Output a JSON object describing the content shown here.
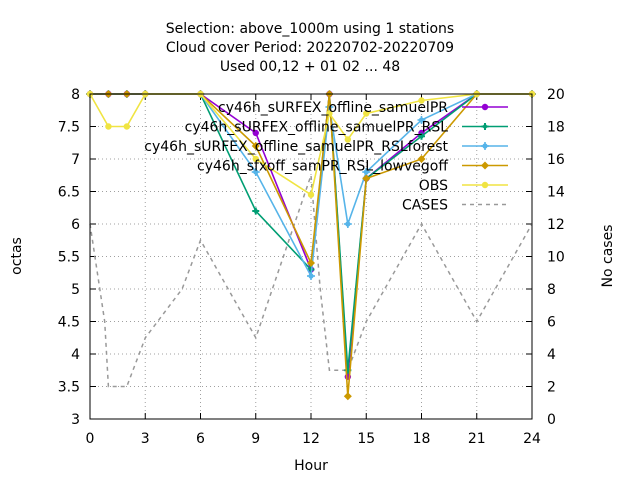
{
  "chart_data": {
    "type": "line",
    "title_lines": [
      "Selection: above_1000m using     1 stations",
      "Cloud cover   Period: 20220702-20220709",
      "Used  00,12 + 01 02 ... 48"
    ],
    "xlabel": "Hour",
    "ylabel": "octas",
    "y2label": "No cases",
    "xlim": [
      0,
      24
    ],
    "ylim": [
      3,
      8
    ],
    "y2lim": [
      0,
      20
    ],
    "xticks": [
      "0",
      "3",
      "6",
      "9",
      "12",
      "15",
      "18",
      "21",
      "24"
    ],
    "yticks": [
      "3",
      "3.5",
      "4",
      "4.5",
      "5",
      "5.5",
      "6",
      "6.5",
      "7",
      "7.5",
      "8"
    ],
    "y2ticks": [
      "0",
      "2",
      "4",
      "6",
      "8",
      "10",
      "12",
      "14",
      "16",
      "18",
      "20"
    ],
    "grid": true,
    "legend_position": "top-right",
    "series": [
      {
        "name": "cy46h_sURFEX_offline_samuelPR",
        "color": "#9400d3",
        "marker": "circle",
        "axis": "y",
        "points": [
          [
            0,
            8
          ],
          [
            1,
            8
          ],
          [
            2,
            8
          ],
          [
            3,
            8
          ],
          [
            6,
            8
          ],
          [
            9,
            7.4
          ],
          [
            12,
            5.3
          ],
          [
            13,
            8
          ],
          [
            14,
            3.65
          ],
          [
            15,
            6.7
          ],
          [
            18,
            7.4
          ],
          [
            21,
            8
          ],
          [
            24,
            8
          ]
        ]
      },
      {
        "name": "cy46h_sURFEX_offline_samuelPR_RSL",
        "color": "#009e73",
        "marker": "cross",
        "axis": "y",
        "points": [
          [
            0,
            8
          ],
          [
            1,
            8
          ],
          [
            2,
            8
          ],
          [
            3,
            8
          ],
          [
            6,
            8
          ],
          [
            9,
            6.2
          ],
          [
            12,
            5.3
          ],
          [
            13,
            8
          ],
          [
            14,
            3.75
          ],
          [
            15,
            6.7
          ],
          [
            18,
            7.35
          ],
          [
            21,
            8
          ],
          [
            24,
            8
          ]
        ]
      },
      {
        "name": "cy46h_sURFEX_offline_samuelPR_RSLforest",
        "color": "#56b4e9",
        "marker": "star",
        "axis": "y",
        "points": [
          [
            0,
            8
          ],
          [
            1,
            8
          ],
          [
            2,
            8
          ],
          [
            3,
            8
          ],
          [
            6,
            8
          ],
          [
            9,
            6.8
          ],
          [
            12,
            5.2
          ],
          [
            13,
            7.8
          ],
          [
            14,
            6.0
          ],
          [
            15,
            6.8
          ],
          [
            18,
            7.6
          ],
          [
            21,
            8
          ],
          [
            24,
            8
          ]
        ]
      },
      {
        "name": "cy46h_sfxoff_samPR_RSL_lowvegoff",
        "color": "#cc9900",
        "marker": "diamond",
        "axis": "y",
        "points": [
          [
            0,
            8
          ],
          [
            1,
            8
          ],
          [
            2,
            8
          ],
          [
            3,
            8
          ],
          [
            6,
            8
          ],
          [
            9,
            7.2
          ],
          [
            12,
            5.4
          ],
          [
            13,
            8
          ],
          [
            14,
            3.35
          ],
          [
            15,
            6.7
          ],
          [
            18,
            7.0
          ],
          [
            21,
            8
          ],
          [
            24,
            8
          ]
        ]
      },
      {
        "name": "OBS",
        "color": "#f0e442",
        "marker": "circle",
        "axis": "y",
        "points": [
          [
            0,
            8
          ],
          [
            1,
            7.5
          ],
          [
            2,
            7.5
          ],
          [
            3,
            8
          ],
          [
            6,
            8
          ],
          [
            9,
            7.0
          ],
          [
            12,
            6.45
          ],
          [
            13,
            7.7
          ],
          [
            14,
            7.3
          ],
          [
            15,
            7.7
          ],
          [
            18,
            7.9
          ],
          [
            21,
            8
          ],
          [
            24,
            8
          ]
        ]
      },
      {
        "name": "CASES",
        "color": "#999999",
        "marker": "none",
        "dashed": true,
        "axis": "y2",
        "points": [
          [
            0,
            12
          ],
          [
            0.8,
            6
          ],
          [
            1,
            2
          ],
          [
            2,
            2
          ],
          [
            3,
            5
          ],
          [
            5,
            8
          ],
          [
            6,
            11
          ],
          [
            9,
            5
          ],
          [
            12,
            15
          ],
          [
            12.5,
            8
          ],
          [
            13,
            3
          ],
          [
            14,
            3
          ],
          [
            15,
            6
          ],
          [
            18,
            12
          ],
          [
            21,
            6
          ],
          [
            24,
            12
          ]
        ]
      }
    ]
  }
}
